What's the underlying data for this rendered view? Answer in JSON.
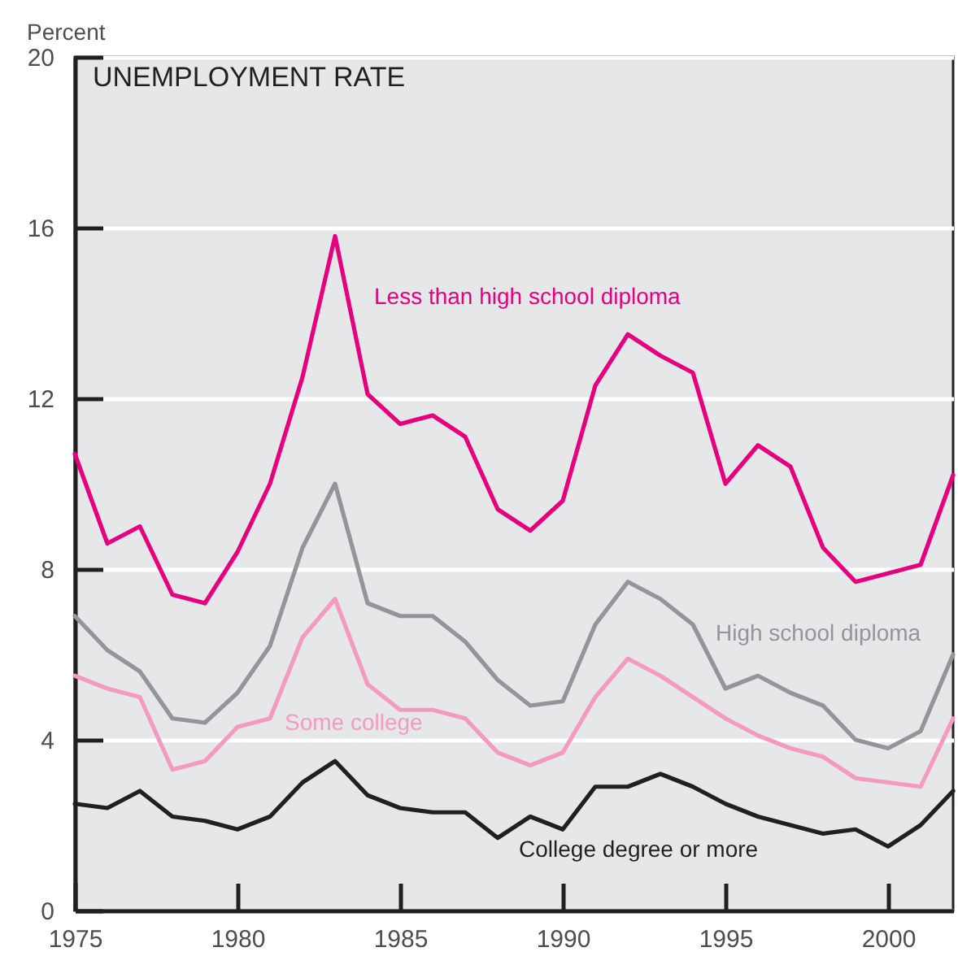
{
  "chart_data": {
    "type": "line",
    "title": "UNEMPLOYMENT RATE",
    "ylabel": "Percent",
    "x": [
      1975,
      1976,
      1977,
      1978,
      1979,
      1980,
      1981,
      1982,
      1983,
      1984,
      1985,
      1986,
      1987,
      1988,
      1989,
      1990,
      1991,
      1992,
      1993,
      1994,
      1995,
      1996,
      1997,
      1998,
      1999,
      2000,
      2001,
      2002
    ],
    "series": [
      {
        "name": "Less than high school diploma",
        "color": "#e6007e",
        "values": [
          10.7,
          8.6,
          9.0,
          7.4,
          7.2,
          8.4,
          10.0,
          12.5,
          15.8,
          12.1,
          11.4,
          11.6,
          11.1,
          9.4,
          8.9,
          9.6,
          12.3,
          13.5,
          13.0,
          12.6,
          10.0,
          10.9,
          10.4,
          8.5,
          7.7,
          7.9,
          8.1,
          10.2
        ]
      },
      {
        "name": "High school diploma",
        "color": "#939598",
        "values": [
          6.9,
          6.1,
          5.6,
          4.5,
          4.4,
          5.1,
          6.2,
          8.5,
          10.0,
          7.2,
          6.9,
          6.9,
          6.3,
          5.4,
          4.8,
          4.9,
          6.7,
          7.7,
          7.3,
          6.7,
          5.2,
          5.5,
          5.1,
          4.8,
          4.0,
          3.8,
          4.2,
          6.0
        ]
      },
      {
        "name": "Some college",
        "color": "#f49ac1",
        "values": [
          5.5,
          5.2,
          5.0,
          3.3,
          3.5,
          4.3,
          4.5,
          6.4,
          7.3,
          5.3,
          4.7,
          4.7,
          4.5,
          3.7,
          3.4,
          3.7,
          5.0,
          5.9,
          5.5,
          5.0,
          4.5,
          4.1,
          3.8,
          3.6,
          3.1,
          3.0,
          2.9,
          4.5
        ]
      },
      {
        "name": "College degree or more",
        "color": "#231f20",
        "values": [
          2.5,
          2.4,
          2.8,
          2.2,
          2.1,
          1.9,
          2.2,
          3.0,
          3.5,
          2.7,
          2.4,
          2.3,
          2.3,
          1.7,
          2.2,
          1.9,
          2.9,
          2.9,
          3.2,
          2.9,
          2.5,
          2.2,
          2.0,
          1.8,
          1.9,
          1.5,
          2.0,
          2.8
        ]
      }
    ],
    "xlim": [
      1975,
      2002
    ],
    "xticks": [
      1975,
      1980,
      1985,
      1990,
      1995,
      2000
    ],
    "ylim": [
      0,
      20
    ],
    "yticks": [
      0,
      4,
      8,
      12,
      16,
      20
    ],
    "grid": "y",
    "legend": false,
    "line_style": "solid"
  }
}
